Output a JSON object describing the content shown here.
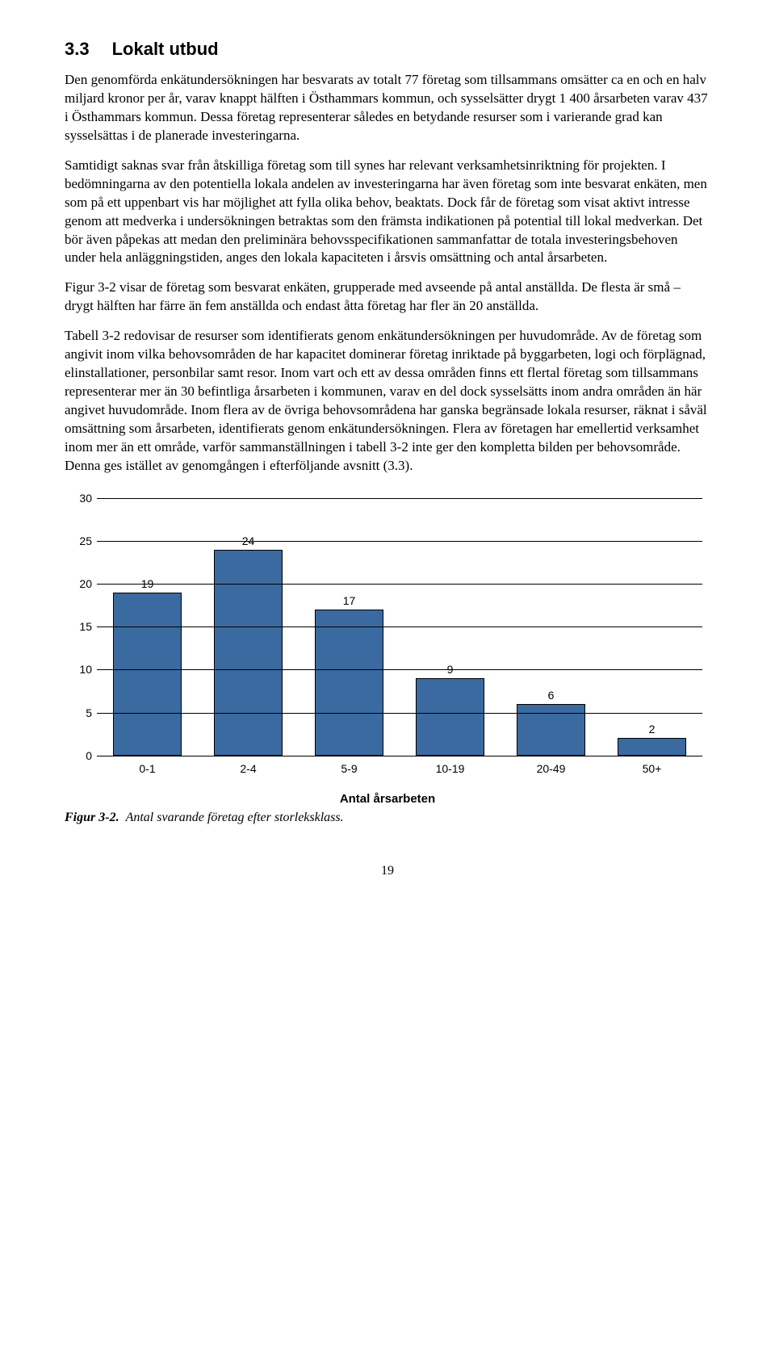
{
  "heading": {
    "number": "3.3",
    "title": "Lokalt utbud"
  },
  "paragraphs": {
    "p1": "Den genomförda enkätundersökningen har besvarats av totalt 77 företag som tillsammans omsätter ca en och en halv miljard kronor per år, varav knappt hälften i Östhammars kommun, och sysselsätter drygt 1 400 årsarbeten varav 437 i Östhammars kommun. Dessa företag representerar således en betydande resurser som i varierande grad kan sysselsättas i de planerade investeringarna.",
    "p2": "Samtidigt saknas svar från åtskilliga företag som till synes har relevant verksamhetsinriktning för projekten. I bedömningarna av den potentiella lokala andelen av investeringarna har även företag som inte besvarat enkäten, men som på ett uppenbart vis har möjlighet att fylla olika behov, beaktats. Dock får de företag som visat aktivt intresse genom att medverka i undersökningen betraktas som den främsta indikationen på potential till lokal medverkan. Det bör även påpekas att medan den preliminära behovsspecifikationen sammanfattar de totala investeringsbehoven under hela anläggningstiden, anges den lokala kapaciteten i årsvis omsättning och antal årsarbeten.",
    "p3": "Figur 3-2 visar de företag som besvarat enkäten, grupperade med avseende på antal anställda. De flesta är små – drygt hälften har färre än fem anställda och endast åtta företag har fler än 20 anställda.",
    "p4": "Tabell 3-2 redovisar de resurser som identifierats genom enkätundersökningen per huvudområde. Av de företag som angivit inom vilka behovsområden de har kapacitet dominerar företag inriktade på byggarbeten, logi och förplägnad, elinstallationer, personbilar samt resor. Inom vart och ett av dessa områden finns ett flertal företag som tillsammans representerar mer än 30 befintliga årsarbeten i kommunen, varav en del dock sysselsätts inom andra områden än här angivet huvudområde. Inom flera av de övriga behovsområdena har ganska begränsade lokala resurser, räknat i såväl omsättning som årsarbeten, identifierats genom enkätundersökningen. Flera av företagen har emellertid verksamhet inom mer än ett område, varför sammanställningen i tabell 3-2 inte ger den kompletta bilden per behovsområde. Denna ges istället av genomgången i efterföljande avsnitt (3.3)."
  },
  "chart": {
    "type": "bar",
    "categories": [
      "0-1",
      "2-4",
      "5-9",
      "10-19",
      "20-49",
      "50+"
    ],
    "values": [
      19,
      24,
      17,
      9,
      6,
      2
    ],
    "bar_color": "#3B6AA0",
    "bar_border_color": "#000000",
    "ylim": [
      0,
      30
    ],
    "ytick_step": 5,
    "yticks": [
      0,
      5,
      10,
      15,
      20,
      25,
      30
    ],
    "grid_color": "#000000",
    "background_color": "#ffffff",
    "label_fontsize": 14,
    "value_label_fontsize": 14,
    "x_axis_title": "Antal årsarbeten",
    "x_axis_title_fontsize": 15,
    "bar_width": 0.68
  },
  "figure_caption": {
    "label": "Figur 3-2.",
    "text": "Antal svarande företag efter storleksklass."
  },
  "page_number": "19"
}
